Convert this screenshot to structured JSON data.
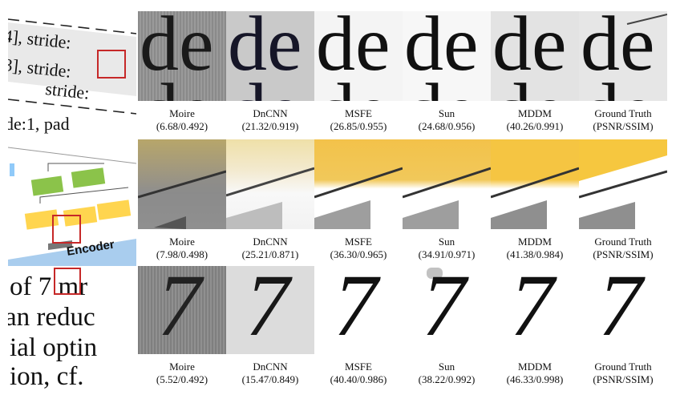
{
  "source_crops": {
    "row1_lines": [
      "4], stride:",
      "3], stride:",
      "stride:",
      "de:1, pad"
    ],
    "row2_label": "Encoder",
    "row3_lines": [
      "of 7 mr",
      "an reduc",
      "ial optin",
      "ion, cf."
    ]
  },
  "glyphs": {
    "row1": "de",
    "row3": "7"
  },
  "rows": [
    {
      "captions": [
        {
          "method": "Moire",
          "score": "(6.68/0.492)"
        },
        {
          "method": "DnCNN",
          "score": "(21.32/0.919)"
        },
        {
          "method": "MSFE",
          "score": "(26.85/0.955)"
        },
        {
          "method": "Sun",
          "score": "(24.68/0.956)"
        },
        {
          "method": "MDDM",
          "score": "(40.26/0.991)"
        },
        {
          "method": "Ground Truth",
          "score": "(PSNR/SSIM)"
        }
      ]
    },
    {
      "captions": [
        {
          "method": "Moire",
          "score": "(7.98/0.498)"
        },
        {
          "method": "DnCNN",
          "score": "(25.21/0.871)"
        },
        {
          "method": "MSFE",
          "score": "(36.30/0.965)"
        },
        {
          "method": "Sun",
          "score": "(34.91/0.971)"
        },
        {
          "method": "MDDM",
          "score": "(41.38/0.984)"
        },
        {
          "method": "Ground Truth",
          "score": "(PSNR/SSIM)"
        }
      ]
    },
    {
      "captions": [
        {
          "method": "Moire",
          "score": "(5.52/0.492)"
        },
        {
          "method": "DnCNN",
          "score": "(15.47/0.849)"
        },
        {
          "method": "MSFE",
          "score": "(40.40/0.986)"
        },
        {
          "method": "Sun",
          "score": "(38.22/0.992)"
        },
        {
          "method": "MDDM",
          "score": "(46.33/0.998)"
        },
        {
          "method": "Ground Truth",
          "score": "(PSNR/SSIM)"
        }
      ]
    }
  ],
  "colors": {
    "highlight_box": "#c62828",
    "yellow": "#f5c542",
    "green": "#8bc34a",
    "blue": "#90caf9"
  }
}
